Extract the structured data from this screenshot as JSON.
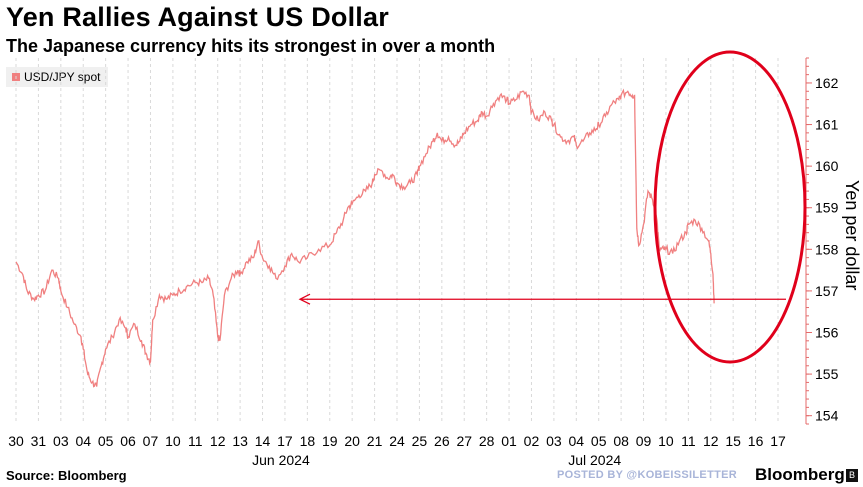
{
  "header": {
    "title": "Yen Rallies Against US Dollar",
    "subtitle": "The Japanese currency hits its strongest in over a month"
  },
  "footer": {
    "source": "Source: Bloomberg",
    "posted_by": "POSTED BY @KOBEISSILETTER",
    "brand": "Bloomberg",
    "badge": "B"
  },
  "colors": {
    "series": "#f08080",
    "axis": "#e46b6b",
    "annotation": "#e0001b",
    "grid": "#d9d9d9"
  },
  "chart_data": {
    "type": "line",
    "title": "Yen Rallies Against US Dollar",
    "subtitle": "The Japanese currency hits its strongest in over a month",
    "ylabel": "Yen per dollar",
    "xlabel": "",
    "ylim": [
      153.8,
      162.6
    ],
    "yticks": [
      154,
      155,
      156,
      157,
      158,
      159,
      160,
      161,
      162
    ],
    "x_tick_labels": [
      "30",
      "31",
      "03",
      "04",
      "05",
      "06",
      "07",
      "10",
      "11",
      "12",
      "13",
      "14",
      "17",
      "18",
      "19",
      "20",
      "21",
      "24",
      "25",
      "26",
      "27",
      "28",
      "01",
      "02",
      "03",
      "04",
      "05",
      "08",
      "09",
      "10",
      "11",
      "12",
      "15",
      "16",
      "17"
    ],
    "month_labels": [
      {
        "label": "Jun 2024",
        "tick_index": 12
      },
      {
        "label": "Jul 2024",
        "tick_index": 26
      }
    ],
    "grid": "vertical dashed",
    "legend": {
      "position": "top-left",
      "entries": [
        "USD/JPY spot"
      ]
    },
    "series": [
      {
        "name": "USD/JPY spot",
        "points": [
          [
            0,
            157.7
          ],
          [
            0.3,
            157.4
          ],
          [
            0.5,
            157.0
          ],
          [
            0.8,
            156.8
          ],
          [
            1,
            156.9
          ],
          [
            1.3,
            157.0
          ],
          [
            1.6,
            157.5
          ],
          [
            1.9,
            157.3
          ],
          [
            2,
            157.0
          ],
          [
            2.3,
            156.6
          ],
          [
            2.6,
            156.2
          ],
          [
            2.9,
            155.9
          ],
          [
            3,
            155.6
          ],
          [
            3.2,
            155.0
          ],
          [
            3.4,
            154.8
          ],
          [
            3.6,
            154.7
          ],
          [
            3.8,
            155.2
          ],
          [
            4,
            155.6
          ],
          [
            4.3,
            155.9
          ],
          [
            4.6,
            156.3
          ],
          [
            4.9,
            156.1
          ],
          [
            5,
            155.9
          ],
          [
            5.3,
            156.2
          ],
          [
            5.6,
            155.8
          ],
          [
            5.8,
            155.5
          ],
          [
            6,
            155.3
          ],
          [
            6.1,
            156.3
          ],
          [
            6.4,
            156.9
          ],
          [
            6.7,
            156.8
          ],
          [
            7,
            156.9
          ],
          [
            7.3,
            157.0
          ],
          [
            7.6,
            157.1
          ],
          [
            8,
            157.2
          ],
          [
            8.3,
            157.2
          ],
          [
            8.6,
            157.3
          ],
          [
            8.8,
            156.9
          ],
          [
            9,
            155.9
          ],
          [
            9.1,
            155.8
          ],
          [
            9.3,
            156.9
          ],
          [
            9.6,
            157.3
          ],
          [
            9.9,
            157.5
          ],
          [
            10,
            157.4
          ],
          [
            10.3,
            157.7
          ],
          [
            10.6,
            157.8
          ],
          [
            10.8,
            158.2
          ],
          [
            11,
            157.8
          ],
          [
            11.3,
            157.6
          ],
          [
            11.6,
            157.3
          ],
          [
            12,
            157.6
          ],
          [
            12.3,
            157.9
          ],
          [
            12.6,
            157.7
          ],
          [
            13,
            157.8
          ],
          [
            13.5,
            158.0
          ],
          [
            14,
            158.1
          ],
          [
            14.3,
            158.4
          ],
          [
            14.6,
            158.7
          ],
          [
            14.8,
            159.0
          ],
          [
            15,
            159.1
          ],
          [
            15.3,
            159.3
          ],
          [
            15.6,
            159.4
          ],
          [
            15.9,
            159.6
          ],
          [
            16,
            159.8
          ],
          [
            16.3,
            159.9
          ],
          [
            16.6,
            159.7
          ],
          [
            16.8,
            159.8
          ],
          [
            17,
            159.6
          ],
          [
            17.3,
            159.5
          ],
          [
            17.6,
            159.6
          ],
          [
            17.9,
            159.8
          ],
          [
            18,
            160.0
          ],
          [
            18.3,
            160.3
          ],
          [
            18.6,
            160.6
          ],
          [
            18.8,
            160.8
          ],
          [
            19,
            160.6
          ],
          [
            19.3,
            160.7
          ],
          [
            19.6,
            160.5
          ],
          [
            19.8,
            160.6
          ],
          [
            20,
            160.8
          ],
          [
            20.3,
            161.0
          ],
          [
            20.6,
            161.1
          ],
          [
            20.8,
            161.3
          ],
          [
            21,
            161.2
          ],
          [
            21.3,
            161.5
          ],
          [
            21.6,
            161.7
          ],
          [
            21.9,
            161.6
          ],
          [
            22,
            161.5
          ],
          [
            22.3,
            161.6
          ],
          [
            22.6,
            161.8
          ],
          [
            22.9,
            161.7
          ],
          [
            23,
            161.3
          ],
          [
            23.3,
            161.1
          ],
          [
            23.6,
            161.3
          ],
          [
            23.9,
            161.1
          ],
          [
            24,
            161.0
          ],
          [
            24.3,
            160.7
          ],
          [
            24.6,
            160.6
          ],
          [
            24.9,
            160.7
          ],
          [
            25,
            160.5
          ],
          [
            25.3,
            160.6
          ],
          [
            25.6,
            160.8
          ],
          [
            25.9,
            160.9
          ],
          [
            26,
            161.0
          ],
          [
            26.3,
            161.2
          ],
          [
            26.6,
            161.5
          ],
          [
            26.9,
            161.6
          ],
          [
            27,
            161.7
          ],
          [
            27.3,
            161.8
          ],
          [
            27.5,
            161.7
          ],
          [
            27.6,
            161.7
          ],
          [
            27.7,
            158.5
          ],
          [
            27.8,
            158.1
          ],
          [
            28,
            158.6
          ],
          [
            28.2,
            159.4
          ],
          [
            28.4,
            159.2
          ],
          [
            28.6,
            158.7
          ],
          [
            28.7,
            158.0
          ],
          [
            28.9,
            158.0
          ],
          [
            29,
            158.0
          ],
          [
            29.3,
            157.9
          ],
          [
            29.6,
            158.2
          ],
          [
            29.9,
            158.4
          ],
          [
            30,
            158.6
          ],
          [
            30.3,
            158.7
          ],
          [
            30.6,
            158.5
          ],
          [
            30.9,
            158.2
          ],
          [
            31,
            157.9
          ],
          [
            31.1,
            157.4
          ],
          [
            31.15,
            156.7
          ]
        ]
      }
    ],
    "annotations": [
      {
        "type": "arrow",
        "label": "",
        "from_value": 156.8,
        "description": "horizontal arrow pointing left at 156.8"
      },
      {
        "type": "ellipse",
        "label": "",
        "description": "circle highlighting the July 11-17 drop"
      }
    ]
  }
}
